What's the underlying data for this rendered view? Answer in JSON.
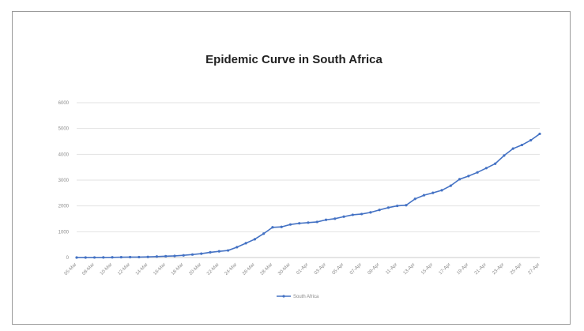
{
  "chart_data": {
    "type": "line",
    "title": "Epidemic Curve in South Africa",
    "xlabel": "",
    "ylabel": "",
    "ylim": [
      0,
      6000
    ],
    "yticks": [
      "0",
      "1000",
      "2000",
      "3000",
      "4000",
      "5000",
      "6000"
    ],
    "x_tick_labels": [
      "05-Mar",
      "08-Mar",
      "10-Mar",
      "12-Mar",
      "14-Mar",
      "16-Mar",
      "18-Mar",
      "20-Mar",
      "22-Mar",
      "24-Mar",
      "26-Mar",
      "28-Mar",
      "30-Mar",
      "01-Apr",
      "03-Apr",
      "05-Apr",
      "07-Apr",
      "09-Apr",
      "11-Apr",
      "13-Apr",
      "15-Apr",
      "17-Apr",
      "19-Apr",
      "21-Apr",
      "23-Apr",
      "25-Apr",
      "27-Apr"
    ],
    "grid": true,
    "legend_position": "bottom",
    "series": [
      {
        "name": "South Africa",
        "color": "#4472c4",
        "values": [
          1,
          1,
          2,
          3,
          7,
          13,
          16,
          17,
          24,
          38,
          51,
          62,
          85,
          116,
          150,
          202,
          240,
          274,
          402,
          554,
          709,
          927,
          1170,
          1187,
          1280,
          1326,
          1353,
          1380,
          1462,
          1505,
          1585,
          1655,
          1686,
          1749,
          1845,
          1934,
          2003,
          2028,
          2272,
          2415,
          2506,
          2605,
          2783,
          3034,
          3158,
          3300,
          3465,
          3635,
          3953,
          4220,
          4361,
          4546,
          4793
        ]
      }
    ]
  }
}
